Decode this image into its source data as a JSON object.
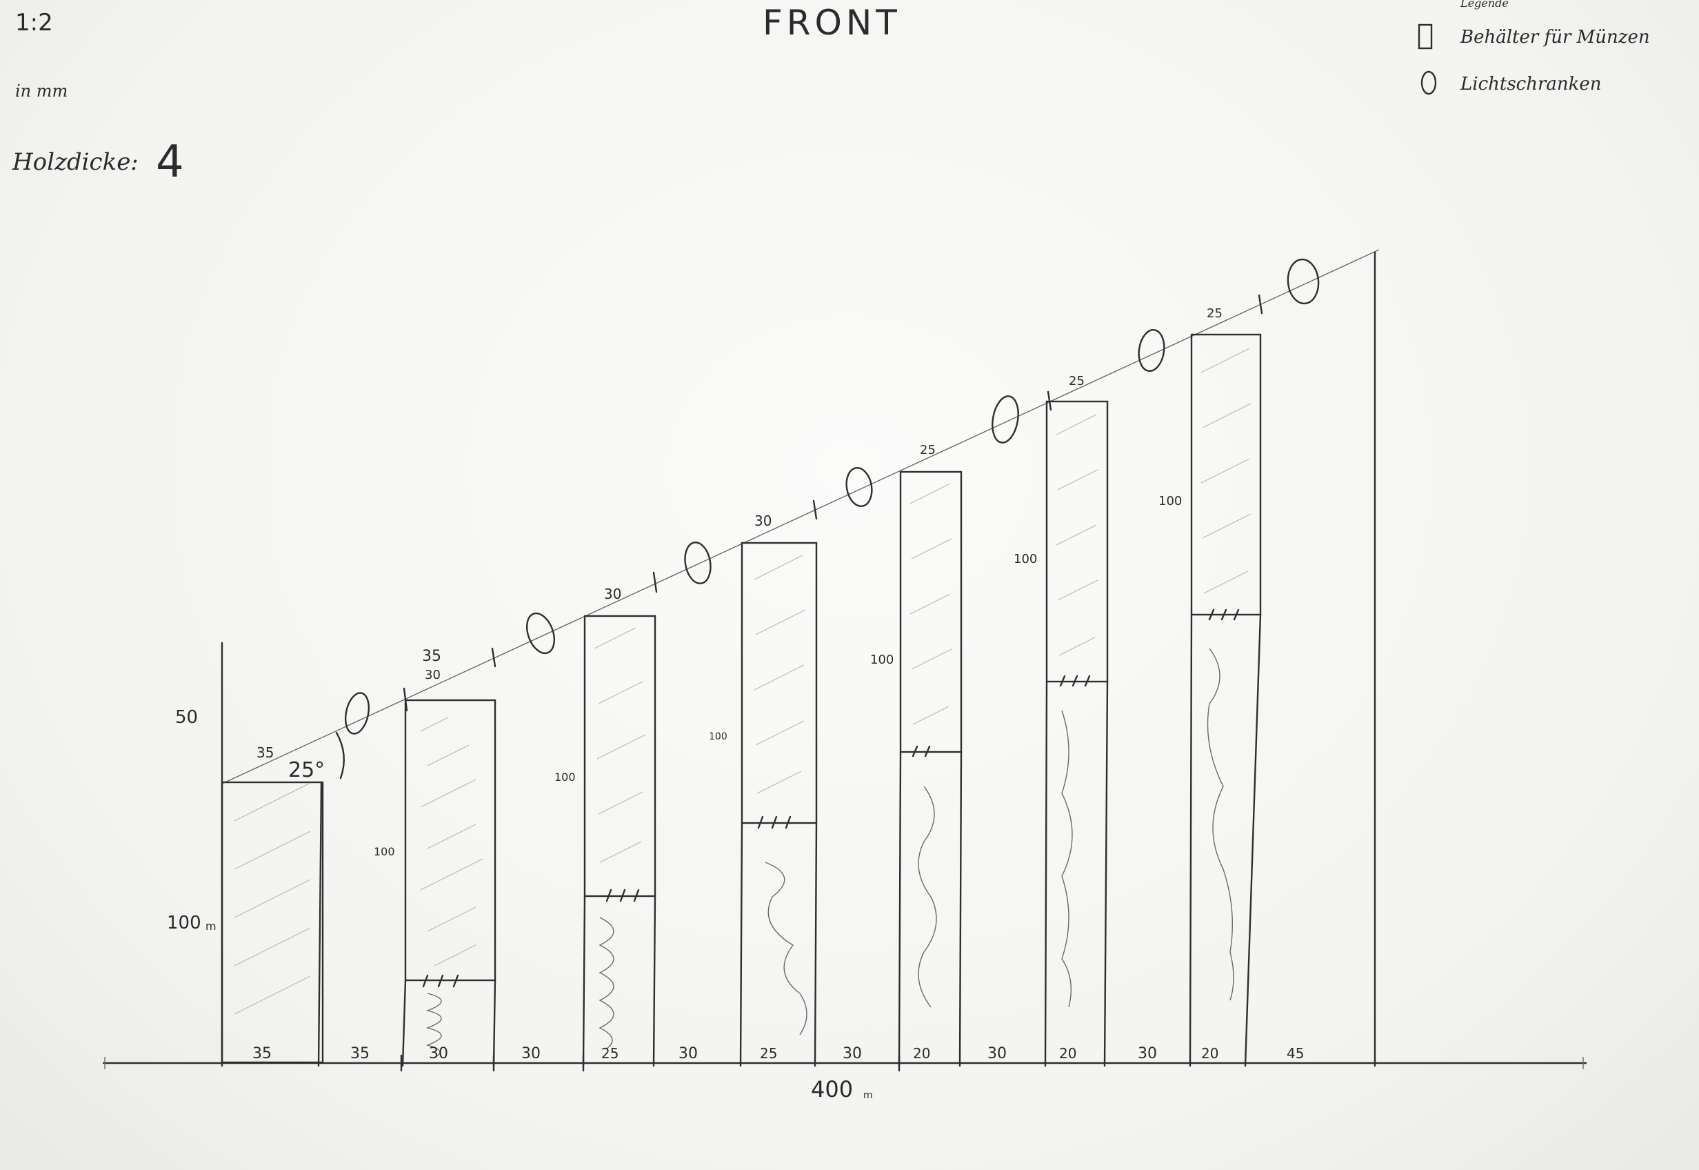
{
  "header": {
    "scale": "1:2",
    "unit": "in mm",
    "wood_label": "Holzdicke:",
    "wood_value": "4",
    "title": "FRONT"
  },
  "legend": {
    "heading": "Legende",
    "items": [
      {
        "symbol": "container-icon",
        "label": "Behälter für Münzen"
      },
      {
        "symbol": "ellipse-icon",
        "label": "Lichtschranken"
      }
    ]
  },
  "left_axis": {
    "label_top": "50",
    "label_bottom": "100",
    "unit_suffix": "m",
    "angle": "25°"
  },
  "bottom": {
    "segments": [
      "35",
      "35",
      "30",
      "30",
      "25",
      "30",
      "25",
      "30",
      "20",
      "30",
      "20",
      "30",
      "20",
      "45"
    ],
    "total": "400",
    "total_suffix": "m"
  },
  "columns": [
    {
      "top_label": "35",
      "top_label_alt": "",
      "height_label": ""
    },
    {
      "top_label": "35",
      "top_label_alt": "30",
      "height_label": "100"
    },
    {
      "top_label": "30",
      "top_label_alt": "",
      "height_label": "100"
    },
    {
      "top_label": "30",
      "top_label_alt": "",
      "height_label": "100"
    },
    {
      "top_label": "25",
      "top_label_alt": "",
      "height_label": "100"
    },
    {
      "top_label": "25",
      "top_label_alt": "",
      "height_label": "100"
    },
    {
      "top_label": "25",
      "top_label_alt": "",
      "height_label": "100"
    }
  ]
}
